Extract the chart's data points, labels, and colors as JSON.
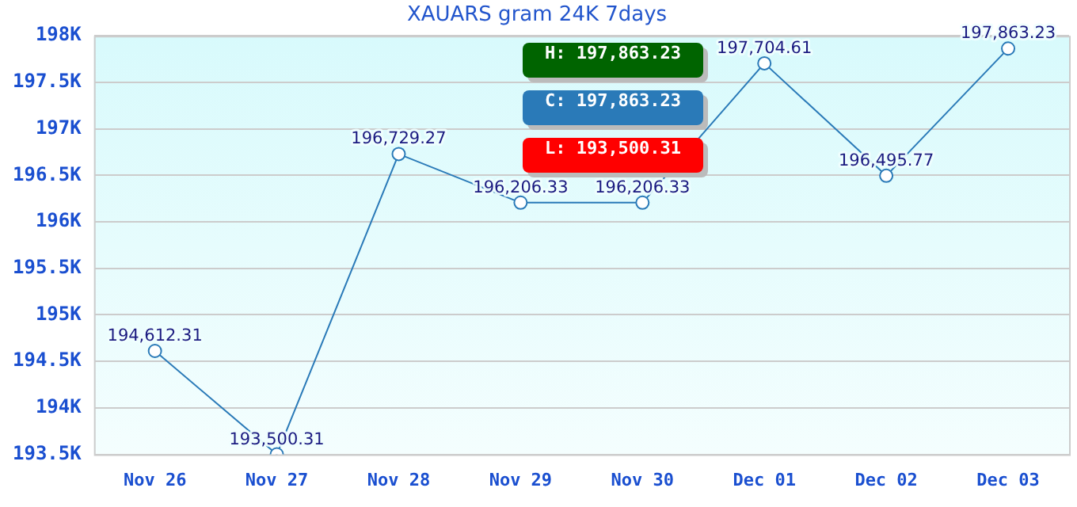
{
  "chart_data": {
    "type": "line",
    "title": "XAUARS gram 24K 7days",
    "categories": [
      "Nov 26",
      "Nov 27",
      "Nov 28",
      "Nov 29",
      "Nov 30",
      "Dec 01",
      "Dec 02",
      "Dec 03"
    ],
    "series": [
      {
        "color": "#2a7ab8",
        "values": [
          194612.31,
          193500.31,
          196729.27,
          196206.33,
          196206.33,
          197704.61,
          196495.77,
          197863.23
        ],
        "value_labels": [
          "194,612.31",
          "193,500.31",
          "196,729.27",
          "196,206.33",
          "196,206.33",
          "197,704.61",
          "196,495.77",
          "197,863.23"
        ]
      }
    ],
    "ylim": [
      193500,
      198000
    ],
    "yticks": [
      {
        "value": 193500,
        "label": "193.5K"
      },
      {
        "value": 194000,
        "label": "194K"
      },
      {
        "value": 194500,
        "label": "194.5K"
      },
      {
        "value": 195000,
        "label": "195K"
      },
      {
        "value": 195500,
        "label": "195.5K"
      },
      {
        "value": 196000,
        "label": "196K"
      },
      {
        "value": 196500,
        "label": "196.5K"
      },
      {
        "value": 197000,
        "label": "197K"
      },
      {
        "value": 197500,
        "label": "197.5K"
      },
      {
        "value": 198000,
        "label": "198K"
      }
    ],
    "grid": "y",
    "legend": false,
    "marker": "circle",
    "line_style": "solid",
    "annotations": [
      "H: 197,863.23",
      "C: 197,863.23",
      "L: 193,500.31"
    ]
  }
}
